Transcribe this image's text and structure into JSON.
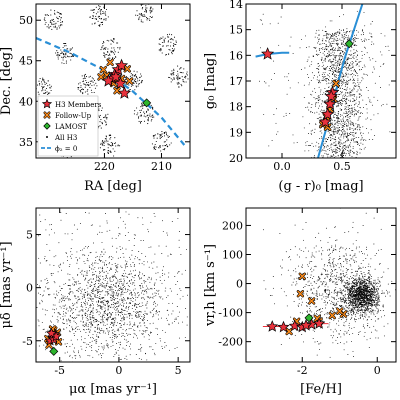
{
  "colors": {
    "h3": "#e8323c",
    "followup": "#ff8c1a",
    "lamost": "#2db52d",
    "curve": "#2a8fd6",
    "field": "#000000"
  },
  "legend": {
    "entries": [
      {
        "label": "H3 Members",
        "marker": "star",
        "color_key": "h3"
      },
      {
        "label": "Follow-Up",
        "marker": "cross",
        "color_key": "followup"
      },
      {
        "label": "LAMOST",
        "marker": "diamond",
        "color_key": "lamost"
      },
      {
        "label": "All H3",
        "marker": "dot",
        "color_key": "field"
      },
      {
        "label": "ϕ₂ = 0",
        "marker": "dash",
        "color_key": "curve"
      }
    ]
  },
  "chart_data": [
    {
      "id": "sky",
      "type": "scatter",
      "xlabel": "RA [deg]",
      "ylabel": "Dec. [deg]",
      "xlim": [
        232,
        205
      ],
      "ylim": [
        33,
        52
      ],
      "xticks": [
        220,
        210
      ],
      "yticks": [
        35,
        40,
        45,
        50
      ],
      "field_fields": [
        [
          229,
          50
        ],
        [
          221,
          50.5
        ],
        [
          213,
          51
        ],
        [
          227,
          46
        ],
        [
          219,
          46.5
        ],
        [
          209,
          47
        ],
        [
          231,
          41.5
        ],
        [
          223,
          42
        ],
        [
          215,
          42.5
        ],
        [
          207,
          43
        ],
        [
          229,
          37.5
        ],
        [
          221,
          38
        ],
        [
          213,
          38.5
        ],
        [
          227,
          34
        ],
        [
          219,
          34.5
        ],
        [
          210,
          35
        ]
      ],
      "h3": [
        [
          218.2,
          43.3
        ],
        [
          217.6,
          43.9
        ],
        [
          217.0,
          44.4
        ],
        [
          218.7,
          42.8
        ],
        [
          219.3,
          42.5
        ],
        [
          218.0,
          43.0
        ],
        [
          216.5,
          41.0
        ],
        [
          217.2,
          42.2
        ]
      ],
      "followup": [
        [
          220.2,
          43.9
        ],
        [
          219.6,
          43.2
        ],
        [
          218.4,
          42.2
        ],
        [
          216.0,
          44.0
        ],
        [
          217.8,
          41.3
        ],
        [
          215.6,
          42.5
        ],
        [
          219.0,
          44.8
        ],
        [
          220.6,
          43.0
        ],
        [
          217.0,
          42.8
        ]
      ],
      "lamost": [
        [
          212.6,
          39.8
        ]
      ],
      "curve": [
        [
          232,
          47.8
        ],
        [
          226,
          46.0
        ],
        [
          220,
          43.8
        ],
        [
          215,
          41.2
        ],
        [
          210,
          38.0
        ],
        [
          206,
          34.6
        ]
      ]
    },
    {
      "id": "cmd",
      "type": "scatter",
      "xlabel": "(g - r)₀ [mag]",
      "ylabel": "g₀ [mag]",
      "xlim": [
        -0.3,
        0.95
      ],
      "ylim": [
        20,
        14
      ],
      "xticks": [
        0.0,
        0.5
      ],
      "yticks": [
        14,
        15,
        16,
        17,
        18,
        19,
        20
      ],
      "h3": [
        [
          -0.12,
          15.95
        ],
        [
          0.4,
          17.9
        ],
        [
          0.42,
          17.45
        ],
        [
          0.36,
          18.6
        ],
        [
          0.38,
          18.3
        ],
        [
          0.41,
          17.6
        ]
      ],
      "followup": [
        [
          0.37,
          18.4
        ],
        [
          0.4,
          18.1
        ],
        [
          0.45,
          17.1
        ],
        [
          0.34,
          18.7
        ],
        [
          0.43,
          17.7
        ],
        [
          0.38,
          18.8
        ]
      ],
      "lamost": [
        [
          0.56,
          15.55
        ]
      ],
      "rgb_curve": [
        [
          0.3,
          20.0
        ],
        [
          0.36,
          19.0
        ],
        [
          0.42,
          18.0
        ],
        [
          0.47,
          17.0
        ],
        [
          0.53,
          16.0
        ],
        [
          0.6,
          15.0
        ],
        [
          0.67,
          14.0
        ]
      ],
      "hb_curve": [
        [
          -0.22,
          16.05
        ],
        [
          -0.12,
          15.95
        ],
        [
          0.0,
          15.9
        ],
        [
          0.06,
          15.9
        ]
      ]
    },
    {
      "id": "pm",
      "type": "scatter",
      "xlabel": "μα [mas yr⁻¹]",
      "ylabel": "μδ [mas yr⁻¹]",
      "xlim": [
        -7,
        6
      ],
      "ylim": [
        -7,
        7.5
      ],
      "xticks": [
        -5,
        0,
        5
      ],
      "yticks": [
        -5,
        0,
        5
      ],
      "h3": [
        [
          -5.6,
          -4.7
        ],
        [
          -5.4,
          -4.4
        ],
        [
          -5.8,
          -5.0
        ],
        [
          -5.5,
          -4.9
        ],
        [
          -5.3,
          -4.6
        ],
        [
          -5.7,
          -4.3
        ]
      ],
      "followup": [
        [
          -5.2,
          -4.2
        ],
        [
          -5.9,
          -5.4
        ],
        [
          -5.5,
          -4.0
        ],
        [
          -6.0,
          -4.8
        ],
        [
          -5.1,
          -5.1
        ],
        [
          -5.6,
          -3.9
        ]
      ],
      "lamost": [
        [
          -5.5,
          -6.0
        ]
      ]
    },
    {
      "id": "feh",
      "type": "scatter",
      "xlabel": "[Fe/H]",
      "ylabel": "vr,h [km s⁻¹]",
      "xlim": [
        -3.5,
        0.5
      ],
      "ylim": [
        -270,
        260
      ],
      "xticks": [
        -2,
        0
      ],
      "yticks": [
        -200,
        -100,
        0,
        100,
        200
      ],
      "h3": [
        [
          -2.8,
          -148
        ],
        [
          -2.5,
          -150
        ],
        [
          -2.2,
          -146
        ],
        [
          -2.0,
          -150
        ],
        [
          -1.75,
          -141
        ],
        [
          -1.55,
          -138
        ],
        [
          -1.9,
          -144
        ]
      ],
      "followup": [
        [
          -2.15,
          -130
        ],
        [
          -2.35,
          -165
        ],
        [
          -1.55,
          -130
        ],
        [
          -1.2,
          -110
        ],
        [
          -0.9,
          -105
        ],
        [
          -1.75,
          -60
        ],
        [
          -2.0,
          25
        ],
        [
          -2.05,
          -35
        ],
        [
          -1.0,
          -95
        ],
        [
          -1.6,
          -120
        ]
      ],
      "lamost": [
        [
          -1.82,
          -118
        ]
      ],
      "error_bars": [
        {
          "x": -2.8,
          "y": -148,
          "xerr": 0.25
        },
        {
          "x": -1.55,
          "y": -138,
          "xerr": 0.25
        }
      ]
    }
  ]
}
